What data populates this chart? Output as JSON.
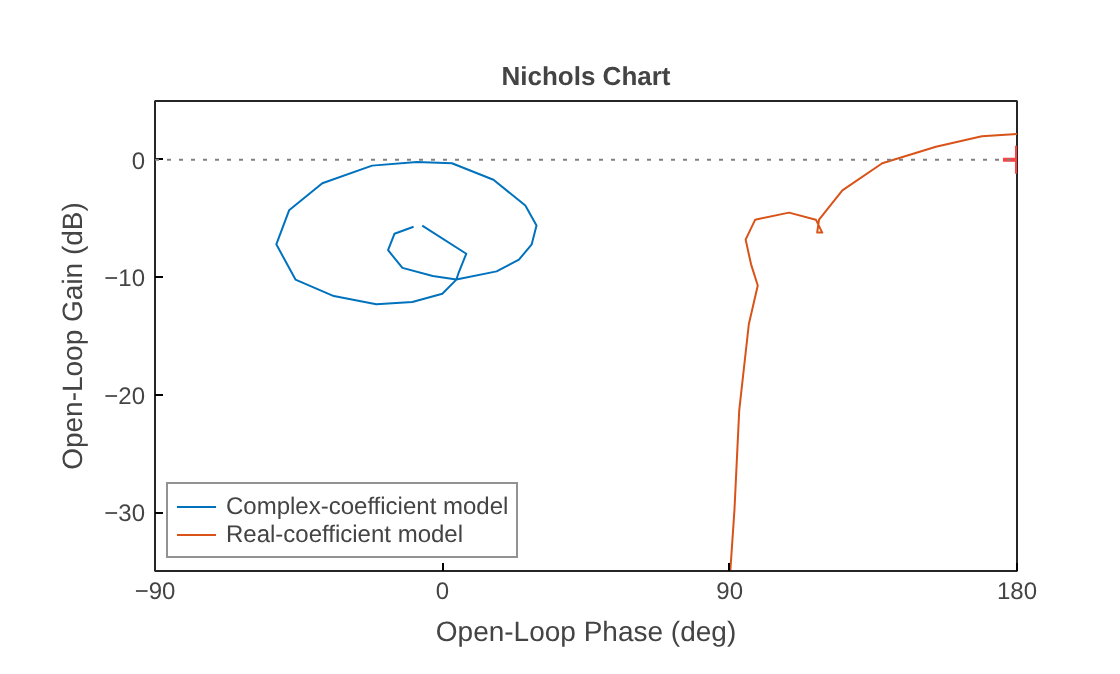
{
  "chart_data": {
    "type": "line",
    "title": "Nichols Chart",
    "xlabel": "Open-Loop Phase (deg)",
    "ylabel": "Open-Loop Gain (dB)",
    "xlim": [
      -90,
      180
    ],
    "xticks": [
      -90,
      0,
      90,
      180
    ],
    "ylim": [
      -35,
      5
    ],
    "yticks": [
      -30,
      -20,
      -10,
      0
    ],
    "grid": false,
    "legend": "bottom left",
    "ref_lines": [
      {
        "axis": "y",
        "value": 0,
        "color": "#808080",
        "line_style": "dotted"
      }
    ],
    "series": [
      {
        "name": "Complex-coefficient model",
        "color": "#0072bd",
        "x": [
          -6.3,
          7.5,
          5,
          4.4,
          17,
          24,
          28,
          29.5,
          26,
          16,
          3,
          -8,
          -22,
          -37.6,
          -48,
          -52,
          -46,
          -34,
          -20.7,
          -9.4,
          0,
          4.4,
          -3,
          -12.5,
          -17,
          -15,
          -9
        ],
        "values": [
          -5.6,
          -8.0,
          -9.7,
          -10.2,
          -9.5,
          -8.5,
          -7.2,
          -5.6,
          -3.9,
          -1.7,
          -0.3,
          -0.2,
          -0.5,
          -2,
          -4.3,
          -7.2,
          -10.2,
          -11.6,
          -12.3,
          -12.1,
          -11.4,
          -10.2,
          -9.9,
          -9.2,
          -7.7,
          -6.3,
          -5.7
        ]
      },
      {
        "name": "Real-coefficient model",
        "color": "#d95319",
        "x": [
          90.2,
          91.5,
          93,
          96,
          98.8,
          96.7,
          95,
          98,
          108.6,
          117,
          119,
          117.4,
          118,
          125.3,
          137.8,
          154.6,
          169,
          180
        ],
        "values": [
          -35,
          -29.8,
          -21.3,
          -14,
          -10.7,
          -8.9,
          -6.8,
          -5.1,
          -4.5,
          -5.1,
          -6.2,
          -6.2,
          -5.1,
          -2.6,
          -0.3,
          1.1,
          2,
          2.2
        ]
      },
      {
        "type": "scatter",
        "marker": "cross",
        "color": "#ff4040",
        "x": [
          180
        ],
        "values": [
          0
        ]
      }
    ]
  }
}
